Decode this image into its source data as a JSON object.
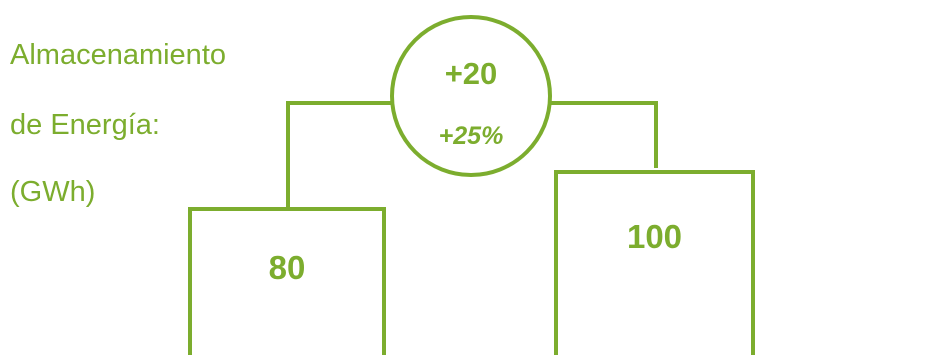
{
  "colors": {
    "accent": "#7cad2e",
    "background": "#ffffff"
  },
  "chart_data": {
    "type": "bar",
    "title_lines": [
      "Almacenamiento",
      "de Energía:",
      "(GWh)"
    ],
    "categories": [
      "",
      ""
    ],
    "values": [
      80,
      100
    ],
    "value_labels": [
      "80",
      "100"
    ],
    "delta": {
      "absolute_label": "+20",
      "percent_label": "+25%"
    },
    "legend": "none",
    "grid": false
  }
}
